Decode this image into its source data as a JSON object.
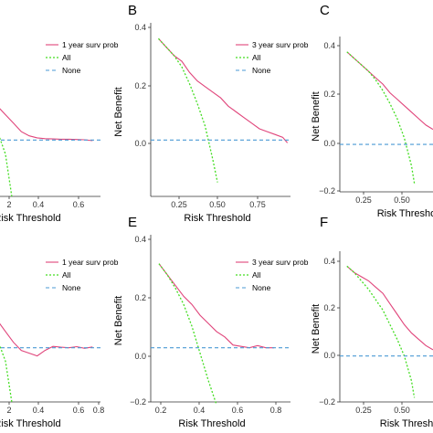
{
  "colors": {
    "model": "#e0457b",
    "all": "#44dd22",
    "none": "#4a9ad4",
    "axis": "#333333"
  },
  "chart_data": [
    {
      "panel": "",
      "type": "line",
      "xlabel": "Risk Threshold",
      "ylabel": "",
      "xlim": [
        -0.05,
        0.7
      ],
      "ylim": [
        -0.2,
        0.4
      ],
      "xticks": [
        "2",
        "0.4",
        "0.6"
      ],
      "yticks": [],
      "legend": [
        "1 year surv prob",
        "All",
        "None"
      ],
      "legend_position": "top-right",
      "series": [
        {
          "name": "1 year surv prob",
          "x": [
            -0.05,
            0.0,
            0.05,
            0.1,
            0.15,
            0.2,
            0.25,
            0.3,
            0.35,
            0.4,
            0.45,
            0.5,
            0.55,
            0.6,
            0.65
          ],
          "y": [
            0.16,
            0.14,
            0.12,
            0.09,
            0.06,
            0.03,
            0.015,
            0.008,
            0.005,
            0.004,
            0.003,
            0.003,
            0.002,
            0.001,
            -0.002
          ]
        },
        {
          "name": "All",
          "x": [
            -0.05,
            0.0,
            0.05,
            0.1,
            0.14
          ],
          "y": [
            0.12,
            0.08,
            0.03,
            -0.05,
            -0.2
          ]
        },
        {
          "name": "None",
          "x": [
            -0.05,
            0.7
          ],
          "y": [
            0,
            0
          ]
        }
      ]
    },
    {
      "panel": "B",
      "type": "line",
      "xlabel": "Risk Threshold",
      "ylabel": "Net Benefit",
      "xlim": [
        0.05,
        0.95
      ],
      "ylim": [
        -0.2,
        0.4
      ],
      "xticks": [
        "0.25",
        "0.50",
        "0.75"
      ],
      "yticks": [
        "0.4",
        "0.2",
        "0.0"
      ],
      "legend": [
        "3 year surv prob",
        "All",
        "None"
      ],
      "legend_position": "top-right",
      "series": [
        {
          "name": "3 year surv prob",
          "x": [
            0.1,
            0.15,
            0.2,
            0.25,
            0.3,
            0.35,
            0.4,
            0.45,
            0.5,
            0.55,
            0.6,
            0.65,
            0.7,
            0.75,
            0.8,
            0.85,
            0.9,
            0.93
          ],
          "y": [
            0.36,
            0.33,
            0.3,
            0.28,
            0.24,
            0.21,
            0.19,
            0.17,
            0.15,
            0.12,
            0.1,
            0.08,
            0.06,
            0.04,
            0.03,
            0.02,
            0.01,
            -0.01
          ]
        },
        {
          "name": "All",
          "x": [
            0.1,
            0.15,
            0.2,
            0.25,
            0.3,
            0.35,
            0.4,
            0.45,
            0.48
          ],
          "y": [
            0.36,
            0.33,
            0.3,
            0.26,
            0.2,
            0.13,
            0.05,
            -0.07,
            -0.15
          ]
        },
        {
          "name": "None",
          "x": [
            0.05,
            0.95
          ],
          "y": [
            0,
            0
          ]
        }
      ]
    },
    {
      "panel": "C",
      "type": "line",
      "xlabel": "Risk Thresho",
      "ylabel": "Net Benefit",
      "xlim": [
        0.05,
        0.7
      ],
      "ylim": [
        -0.22,
        0.48
      ],
      "xticks": [
        "0.25",
        "0.50"
      ],
      "yticks": [
        "0.4",
        "0.2",
        "0.0",
        "−0.2"
      ],
      "legend": [],
      "legend_position": "top-right",
      "series": [
        {
          "name": "",
          "x": [
            0.1,
            0.15,
            0.2,
            0.25,
            0.3,
            0.35,
            0.4,
            0.45,
            0.5,
            0.55,
            0.6,
            0.65,
            0.7
          ],
          "y": [
            0.43,
            0.4,
            0.37,
            0.34,
            0.31,
            0.28,
            0.24,
            0.21,
            0.18,
            0.15,
            0.12,
            0.09,
            0.07
          ]
        },
        {
          "name": "",
          "x": [
            0.1,
            0.15,
            0.2,
            0.25,
            0.3,
            0.35,
            0.4,
            0.45,
            0.5,
            0.55,
            0.57
          ],
          "y": [
            0.43,
            0.4,
            0.37,
            0.34,
            0.3,
            0.25,
            0.19,
            0.12,
            0.03,
            -0.1,
            -0.18
          ]
        },
        {
          "name": "",
          "x": [
            0.05,
            0.7
          ],
          "y": [
            0,
            0
          ]
        }
      ]
    },
    {
      "panel": "",
      "type": "line",
      "xlabel": "Risk Threshold",
      "ylabel": "",
      "xlim": [
        -0.05,
        0.7
      ],
      "ylim": [
        -0.2,
        0.4
      ],
      "xticks": [
        "2",
        "0.4",
        "0.6",
        "0.8"
      ],
      "yticks": [],
      "legend": [
        "1 year surv prob",
        "All",
        "None"
      ],
      "legend_position": "top-right",
      "series": [
        {
          "name": "1 year surv prob",
          "x": [
            -0.05,
            0.0,
            0.05,
            0.1,
            0.15,
            0.2,
            0.25,
            0.3,
            0.35,
            0.4,
            0.45,
            0.5,
            0.55,
            0.6,
            0.65
          ],
          "y": [
            0.18,
            0.14,
            0.1,
            0.06,
            0.02,
            -0.01,
            -0.02,
            -0.03,
            -0.01,
            0.005,
            0.002,
            0.0,
            0.004,
            -0.002,
            0.003
          ]
        },
        {
          "name": "All",
          "x": [
            -0.05,
            0.0,
            0.05,
            0.1,
            0.14
          ],
          "y": [
            0.12,
            0.08,
            0.03,
            -0.05,
            -0.2
          ]
        },
        {
          "name": "None",
          "x": [
            -0.05,
            0.7
          ],
          "y": [
            0,
            0
          ]
        }
      ]
    },
    {
      "panel": "E",
      "type": "line",
      "xlabel": "Risk Threshold",
      "ylabel": "Net Benefit",
      "xlim": [
        0.05,
        0.9
      ],
      "ylim": [
        -0.2,
        0.4
      ],
      "xticks": [
        "0.2",
        "0.4",
        "0.6",
        "0.8"
      ],
      "yticks": [
        "0.4",
        "0.2",
        "0.0",
        "−0.2"
      ],
      "legend": [
        "3 year surv  prob",
        "All",
        "None"
      ],
      "legend_position": "top-right",
      "series": [
        {
          "name": "3 year surv  prob",
          "x": [
            0.1,
            0.15,
            0.2,
            0.25,
            0.3,
            0.35,
            0.4,
            0.45,
            0.5,
            0.55,
            0.6,
            0.65,
            0.7,
            0.75,
            0.8
          ],
          "y": [
            0.31,
            0.27,
            0.23,
            0.19,
            0.16,
            0.12,
            0.09,
            0.06,
            0.04,
            0.01,
            0.005,
            0.0,
            0.008,
            0.0,
            0.0
          ]
        },
        {
          "name": "All",
          "x": [
            0.1,
            0.15,
            0.2,
            0.25,
            0.3,
            0.35,
            0.4,
            0.45
          ],
          "y": [
            0.31,
            0.27,
            0.22,
            0.16,
            0.08,
            -0.02,
            -0.12,
            -0.21
          ]
        },
        {
          "name": "None",
          "x": [
            0.05,
            0.9
          ],
          "y": [
            0,
            0
          ]
        }
      ]
    },
    {
      "panel": "F",
      "type": "line",
      "xlabel": "Risk Thresh",
      "ylabel": "Net Benefit",
      "xlim": [
        0.05,
        0.7
      ],
      "ylim": [
        -0.22,
        0.48
      ],
      "xticks": [
        "0.25",
        "0.50"
      ],
      "yticks": [
        "0.4",
        "0.2",
        "0.0",
        "−0.2"
      ],
      "legend": [],
      "legend_position": "top-right",
      "series": [
        {
          "name": "",
          "x": [
            0.1,
            0.15,
            0.2,
            0.25,
            0.3,
            0.35,
            0.4,
            0.45,
            0.5,
            0.55,
            0.6,
            0.65,
            0.7
          ],
          "y": [
            0.43,
            0.4,
            0.38,
            0.36,
            0.33,
            0.3,
            0.25,
            0.2,
            0.15,
            0.11,
            0.08,
            0.05,
            0.03
          ]
        },
        {
          "name": "",
          "x": [
            0.1,
            0.15,
            0.2,
            0.25,
            0.3,
            0.35,
            0.4,
            0.45,
            0.5,
            0.55,
            0.57
          ],
          "y": [
            0.43,
            0.4,
            0.36,
            0.32,
            0.27,
            0.22,
            0.15,
            0.08,
            0.0,
            -0.12,
            -0.2
          ]
        },
        {
          "name": "",
          "x": [
            0.05,
            0.7
          ],
          "y": [
            0,
            0
          ]
        }
      ]
    }
  ]
}
